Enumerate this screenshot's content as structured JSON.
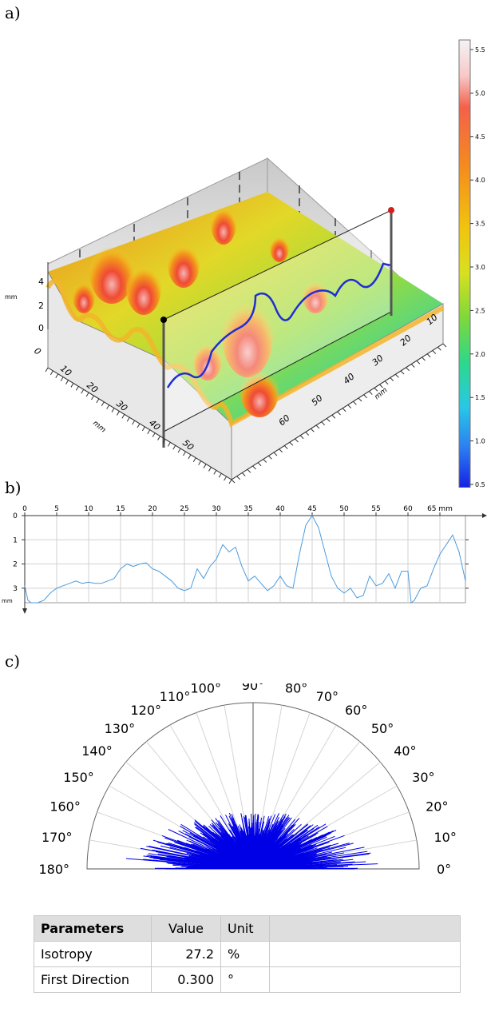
{
  "labels": {
    "a": "a)",
    "b": "b)",
    "c": "c)"
  },
  "panel_a": {
    "colorbar": {
      "unit": "mm",
      "ticks": [
        "5.5",
        "5.0",
        "4.5",
        "4.0",
        "3.5",
        "3.0",
        "2.5",
        "2.0",
        "1.5",
        "1.0",
        "0.5"
      ],
      "colors": [
        "#f4f4f4",
        "#f7c8c8",
        "#f3614a",
        "#f58a1f",
        "#f1c40f",
        "#d8e020",
        "#7fd83a",
        "#2ed88a",
        "#28c8e6",
        "#2c7ff2",
        "#1622e4"
      ]
    },
    "z_axis": {
      "unit": "mm",
      "ticks": [
        "4",
        "2",
        "0"
      ]
    },
    "x_axis": {
      "unit": "mm",
      "ticks": [
        "0",
        "10",
        "20",
        "30",
        "40",
        "50"
      ]
    },
    "y_axis": {
      "unit": "mm",
      "ticks": [
        "10",
        "20",
        "30",
        "40",
        "50",
        "60"
      ]
    }
  },
  "panel_b": {
    "x_unit": "mm",
    "y_unit": "mm",
    "x_ticks": [
      "0",
      "5",
      "10",
      "15",
      "20",
      "25",
      "30",
      "35",
      "40",
      "45",
      "50",
      "55",
      "60",
      "65 mm"
    ],
    "y_ticks": [
      "0",
      "1",
      "2",
      "3"
    ],
    "profile_color": "#4a9be0"
  },
  "chart_data": {
    "type": "line",
    "xlabel": "mm",
    "ylabel": "mm",
    "xlim": [
      0,
      69
    ],
    "ylim": [
      3.6,
      0
    ],
    "x": [
      0,
      0.5,
      1,
      2,
      3,
      4,
      5,
      6,
      7,
      8,
      9,
      10,
      11,
      12,
      13,
      14,
      15,
      16,
      17,
      18,
      19,
      20,
      21,
      22,
      23,
      24,
      25,
      26,
      27,
      28,
      29,
      30,
      31,
      32,
      33,
      34,
      35,
      36,
      37,
      38,
      39,
      40,
      41,
      42,
      43,
      44,
      45,
      46,
      47,
      48,
      49,
      50,
      51,
      52,
      53,
      54,
      55,
      56,
      57,
      58,
      59,
      60,
      60.5,
      61,
      62,
      63,
      64,
      65,
      66,
      67,
      68,
      69
    ],
    "y": [
      2.9,
      3.5,
      3.6,
      3.6,
      3.5,
      3.2,
      3.0,
      2.9,
      2.8,
      2.7,
      2.8,
      2.75,
      2.8,
      2.8,
      2.7,
      2.6,
      2.2,
      2.0,
      2.1,
      2.0,
      1.95,
      2.2,
      2.3,
      2.5,
      2.7,
      3.0,
      3.1,
      3.0,
      2.2,
      2.6,
      2.1,
      1.8,
      1.2,
      1.5,
      1.3,
      2.1,
      2.7,
      2.5,
      2.8,
      3.1,
      2.9,
      2.5,
      2.9,
      3.0,
      1.6,
      0.4,
      0.0,
      0.5,
      1.5,
      2.5,
      3.0,
      3.2,
      3.0,
      3.4,
      3.3,
      2.5,
      2.9,
      2.8,
      2.4,
      3.0,
      2.3,
      2.3,
      3.6,
      3.5,
      3.0,
      2.9,
      2.2,
      1.6,
      1.2,
      0.8,
      1.5,
      2.7
    ],
    "series_color": "#4a9be0"
  },
  "panel_c": {
    "angle_labels": [
      "0°",
      "10°",
      "20°",
      "30°",
      "40°",
      "50°",
      "60°",
      "70°",
      "80°",
      "90°",
      "100°",
      "110°",
      "120°",
      "130°",
      "140°",
      "150°",
      "160°",
      "170°",
      "180°"
    ],
    "rose_color": "#0000e6"
  },
  "table": {
    "headers": {
      "name": "Parameters",
      "value": "Value",
      "unit": "Unit"
    },
    "rows": [
      {
        "name": "Isotropy",
        "value": "27.2",
        "unit": "%"
      },
      {
        "name": "First Direction",
        "value": "0.300",
        "unit": "°"
      }
    ]
  }
}
